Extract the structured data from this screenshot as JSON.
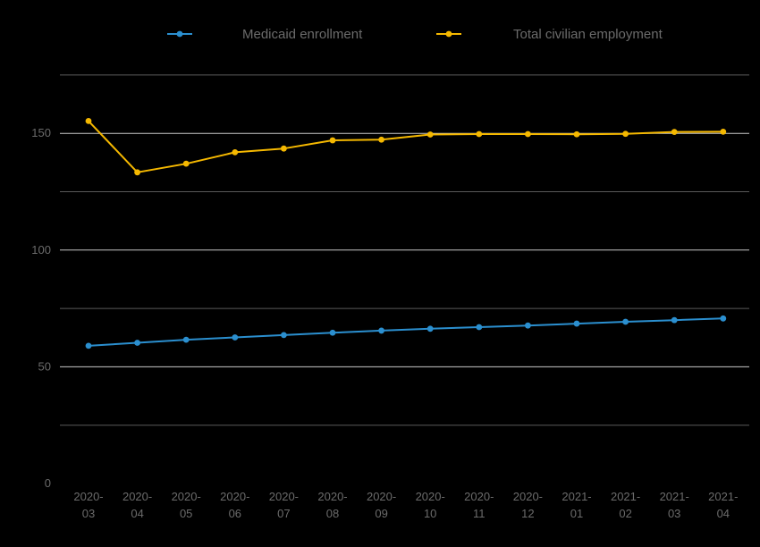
{
  "chart_data": {
    "type": "line",
    "categories": [
      [
        "2020-",
        "03"
      ],
      [
        "2020-",
        "04"
      ],
      [
        "2020-",
        "05"
      ],
      [
        "2020-",
        "06"
      ],
      [
        "2020-",
        "07"
      ],
      [
        "2020-",
        "08"
      ],
      [
        "2020-",
        "09"
      ],
      [
        "2020-",
        "10"
      ],
      [
        "2020-",
        "11"
      ],
      [
        "2020-",
        "12"
      ],
      [
        "2021-",
        "01"
      ],
      [
        "2021-",
        "02"
      ],
      [
        "2021-",
        "03"
      ],
      [
        "2021-",
        "04"
      ]
    ],
    "series": [
      {
        "name": "Medicaid enrollment",
        "color": "#2b8fcf",
        "values": [
          59.0,
          60.3,
          61.6,
          62.6,
          63.6,
          64.6,
          65.5,
          66.3,
          67.0,
          67.7,
          68.5,
          69.3,
          70.0,
          70.7
        ]
      },
      {
        "name": "Total civilian employment",
        "color": "#f5b800",
        "values": [
          155.3,
          133.3,
          137.0,
          141.9,
          143.5,
          147.0,
          147.3,
          149.5,
          149.7,
          149.7,
          149.6,
          149.8,
          150.6,
          150.7
        ]
      }
    ],
    "y_ticks": [
      0,
      50,
      100,
      150
    ],
    "ylim": [
      0,
      175
    ],
    "grid": true,
    "legend_position": "top"
  }
}
